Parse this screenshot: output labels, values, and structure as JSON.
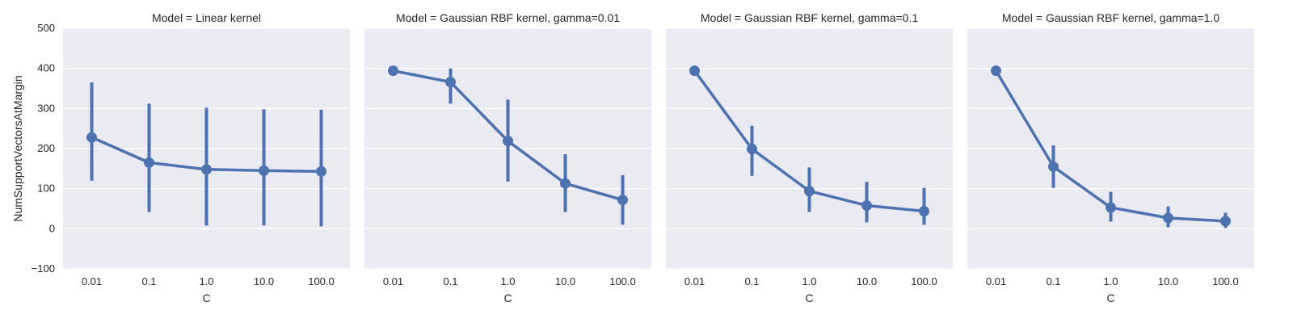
{
  "chart_data": [
    {
      "type": "line",
      "title": "Model = Linear kernel",
      "xlabel": "C",
      "ylabel": "NumSupportVectorsAtMargin",
      "categories": [
        "0.01",
        "0.1",
        "1.0",
        "10.0",
        "100.0"
      ],
      "values": [
        228,
        165,
        148,
        145,
        143
      ],
      "error_low": [
        120,
        42,
        8,
        8,
        6
      ],
      "error_high": [
        365,
        312,
        302,
        298,
        297
      ],
      "ylim": [
        -100,
        500
      ],
      "yticks": [
        "−100",
        "0",
        "100",
        "200",
        "300",
        "400",
        "500"
      ],
      "grid": true,
      "color": "#4C72B0"
    },
    {
      "type": "line",
      "title": "Model = Gaussian RBF kernel, gamma=0.01",
      "xlabel": "C",
      "ylabel": "",
      "categories": [
        "0.01",
        "0.1",
        "1.0",
        "10.0",
        "100.0"
      ],
      "values": [
        394,
        366,
        219,
        113,
        72
      ],
      "error_low": [
        394,
        312,
        118,
        42,
        10
      ],
      "error_high": [
        394,
        400,
        322,
        186,
        134
      ],
      "ylim": [
        -100,
        500
      ],
      "grid": true,
      "color": "#4C72B0"
    },
    {
      "type": "line",
      "title": "Model = Gaussian RBF kernel, gamma=0.1",
      "xlabel": "C",
      "ylabel": "",
      "categories": [
        "0.01",
        "0.1",
        "1.0",
        "10.0",
        "100.0"
      ],
      "values": [
        394,
        199,
        94,
        58,
        44
      ],
      "error_low": [
        394,
        132,
        42,
        16,
        10
      ],
      "error_high": [
        394,
        257,
        153,
        117,
        102
      ],
      "ylim": [
        -100,
        500
      ],
      "grid": true,
      "color": "#4C72B0"
    },
    {
      "type": "line",
      "title": "Model = Gaussian RBF kernel, gamma=1.0",
      "xlabel": "C",
      "ylabel": "",
      "categories": [
        "0.01",
        "0.1",
        "1.0",
        "10.0",
        "100.0"
      ],
      "values": [
        394,
        155,
        53,
        27,
        19
      ],
      "error_low": [
        394,
        102,
        18,
        4,
        2
      ],
      "error_high": [
        394,
        208,
        92,
        56,
        40
      ],
      "ylim": [
        -100,
        500
      ],
      "grid": true,
      "color": "#4C72B0"
    }
  ]
}
